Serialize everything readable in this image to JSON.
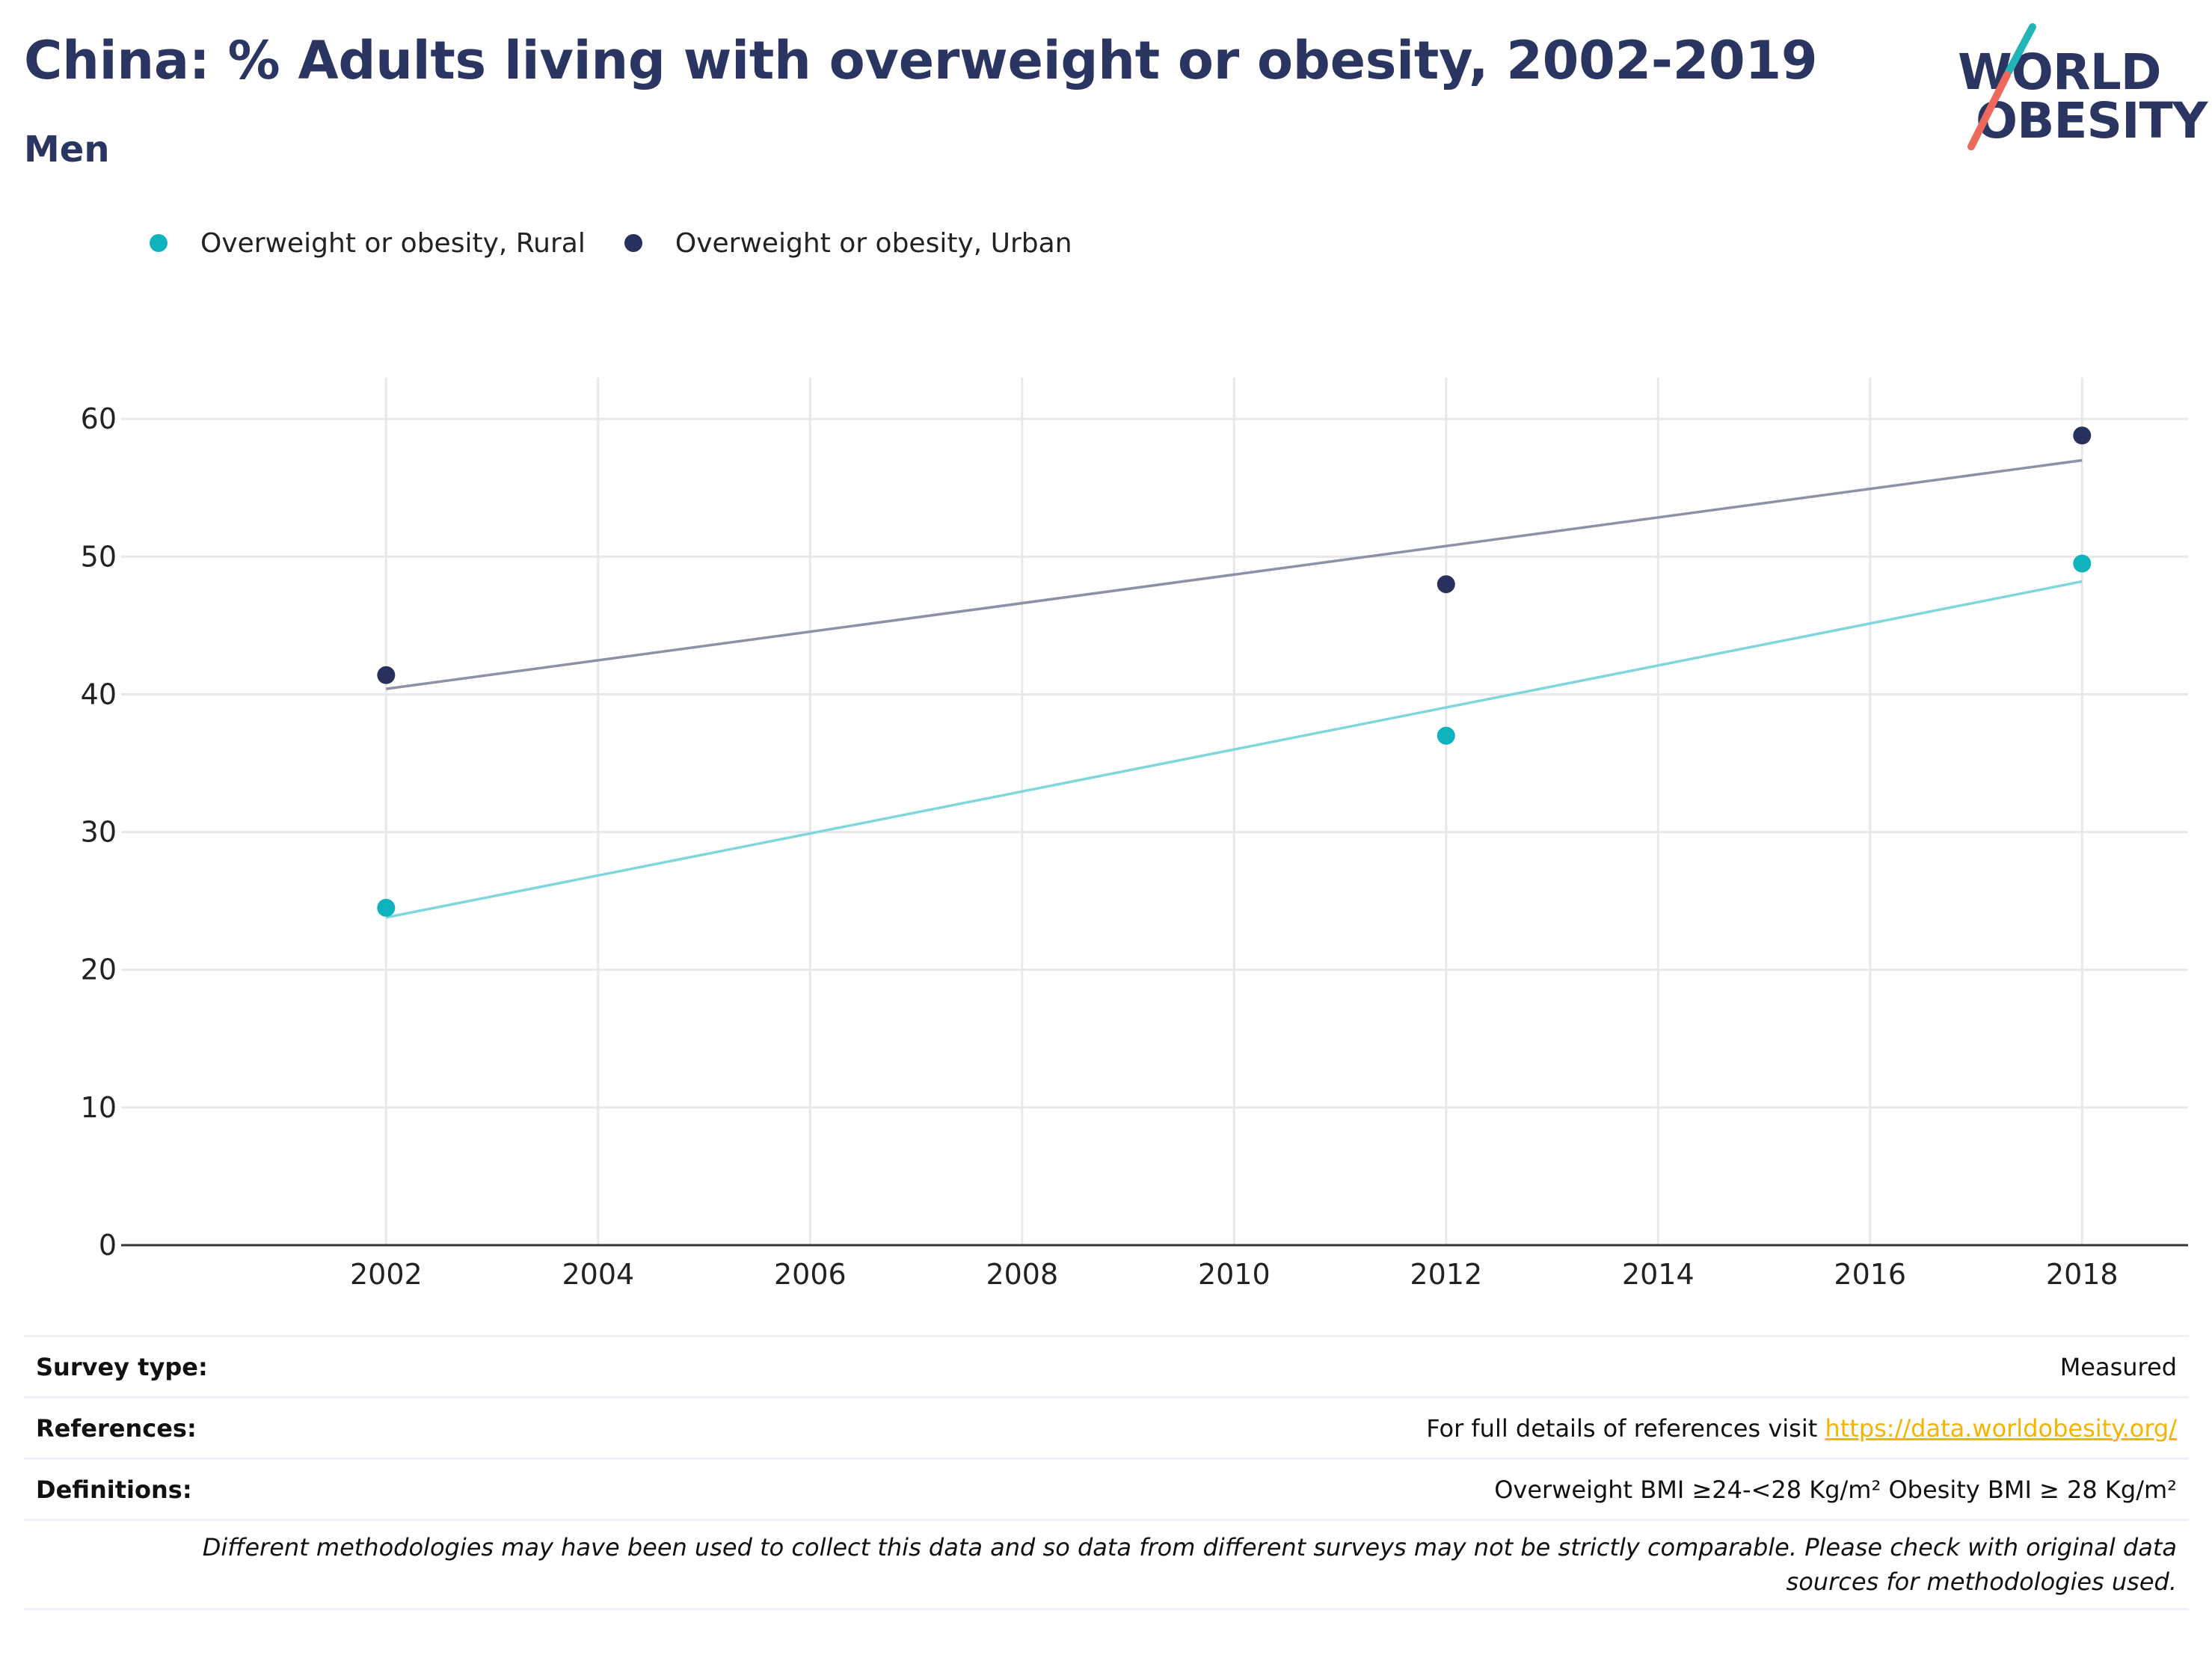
{
  "title": "China: % Adults living with overweight or obesity, 2002-2019",
  "subtitle": "Men",
  "logo": {
    "line1": "WORLD",
    "line2": "OBESITY"
  },
  "colors": {
    "rural": "#0fb3bd",
    "urban": "#28315e",
    "rural_trend": "#7fd7dc",
    "urban_trend": "#8d91a8",
    "grid": "#e8e8ec",
    "axis": "#333333"
  },
  "chart_data": {
    "type": "scatter",
    "title": "China: % Adults living with overweight or obesity, 2002-2019",
    "subtitle": "Men",
    "x_ticks": [
      2002,
      2004,
      2006,
      2008,
      2010,
      2012,
      2014,
      2016,
      2018
    ],
    "y_ticks": [
      0,
      10,
      20,
      30,
      40,
      50,
      60
    ],
    "xlim": [
      1999.5,
      2019
    ],
    "ylim": [
      0,
      63
    ],
    "grid": true,
    "legend_position": "top-left",
    "series": [
      {
        "name": "Overweight or obesity, Rural",
        "x": [
          2002,
          2012,
          2018
        ],
        "y": [
          24.5,
          37.0,
          49.5
        ],
        "trend": [
          23.8,
          48.2
        ]
      },
      {
        "name": "Overweight or obesity, Urban",
        "x": [
          2002,
          2012,
          2018
        ],
        "y": [
          41.4,
          48.0,
          58.8
        ],
        "trend": [
          40.4,
          57.0
        ]
      }
    ]
  },
  "info": {
    "survey_type_label": "Survey type:",
    "survey_type_value": "Measured",
    "references_label": "References:",
    "references_text": "For full details of references visit ",
    "references_link": "https://data.worldobesity.org/",
    "definitions_label": "Definitions:",
    "definitions_value": "Overweight BMI ≥24-<28 Kg/m² Obesity BMI ≥ 28 Kg/m²",
    "note": "Different methodologies may have been used to collect this data and so data from different surveys may not be strictly comparable. Please check with original data sources for methodologies used."
  }
}
